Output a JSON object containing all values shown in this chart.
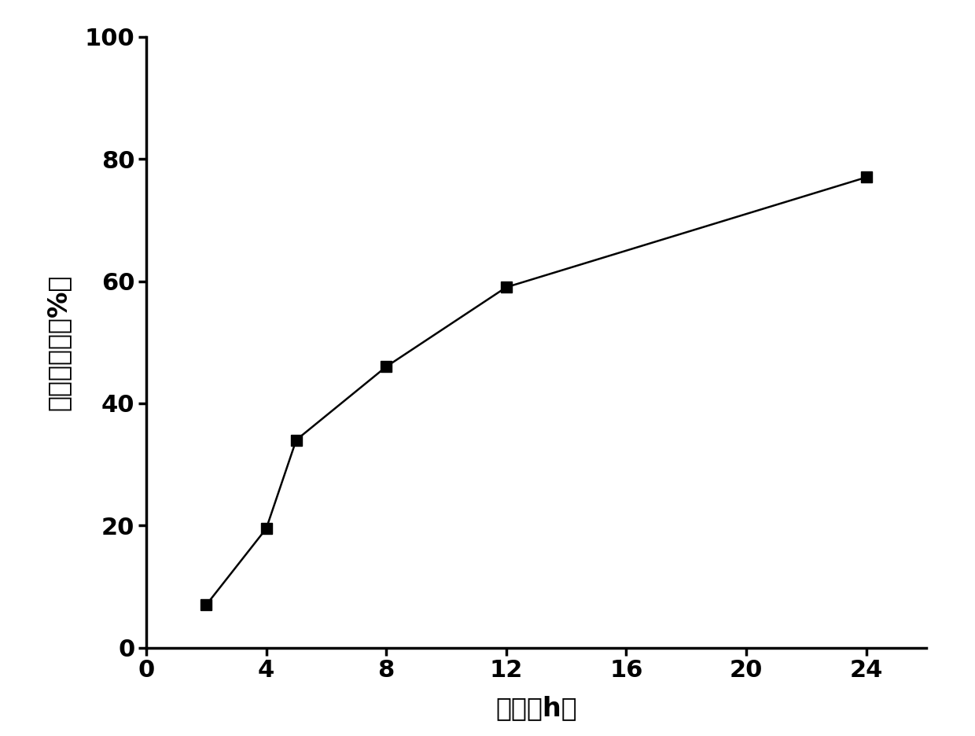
{
  "x": [
    2,
    4,
    5,
    8,
    12,
    24
  ],
  "y": [
    7,
    19.5,
    34,
    46,
    59,
    77
  ],
  "xlim": [
    0,
    26
  ],
  "ylim": [
    0,
    100
  ],
  "xticks": [
    0,
    4,
    8,
    12,
    16,
    20,
    24
  ],
  "yticks": [
    0,
    20,
    40,
    60,
    80,
    100
  ],
  "xlabel": "时间（h）",
  "ylabel": "累积释放度（%）",
  "line_color": "#000000",
  "marker": "s",
  "marker_color": "#000000",
  "marker_size": 10,
  "line_width": 1.8,
  "background_color": "#ffffff",
  "xlabel_fontsize": 24,
  "ylabel_fontsize": 24,
  "tick_fontsize": 22,
  "axis_linewidth": 2.5
}
